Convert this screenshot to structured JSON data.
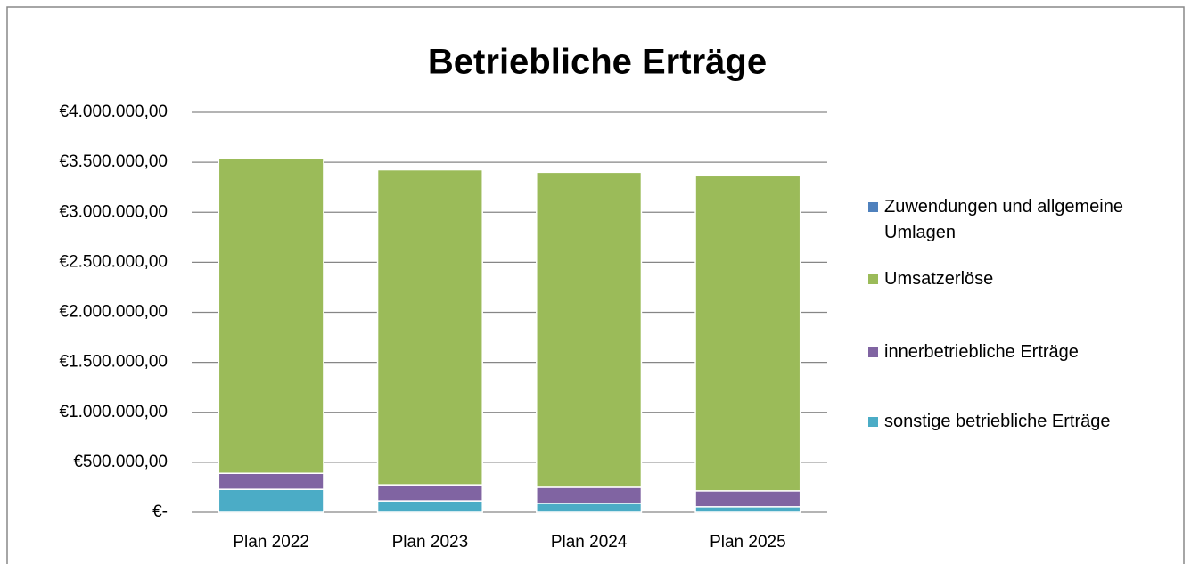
{
  "chart_data": {
    "type": "stacked_bar",
    "title": "Betriebliche Erträge",
    "categories": [
      "Plan 2022",
      "Plan 2023",
      "Plan 2024",
      "Plan 2025"
    ],
    "series": [
      {
        "name": "Zuwendungen und allgemeine Umlagen",
        "color": "#4f81bd",
        "values": [
          0,
          0,
          0,
          0
        ]
      },
      {
        "name": "Umsatzerlöse",
        "color": "#9bbb59",
        "values": [
          3150000,
          3150000,
          3150000,
          3150000
        ]
      },
      {
        "name": "innerbetriebliche Erträge",
        "color": "#8064a2",
        "values": [
          160000,
          160000,
          160000,
          160000
        ]
      },
      {
        "name": "sonstige betriebliche Erträge",
        "color": "#4bacc6",
        "values": [
          230000,
          115000,
          90000,
          55000
        ]
      }
    ],
    "ylim": [
      0,
      4000000
    ],
    "yticks": [
      {
        "value": 0,
        "label": "€-"
      },
      {
        "value": 500000,
        "label": "€500.000,00"
      },
      {
        "value": 1000000,
        "label": "€1.000.000,00"
      },
      {
        "value": 1500000,
        "label": "€1.500.000,00"
      },
      {
        "value": 2000000,
        "label": "€2.000.000,00"
      },
      {
        "value": 2500000,
        "label": "€2.500.000,00"
      },
      {
        "value": 3000000,
        "label": "€3.000.000,00"
      },
      {
        "value": 3500000,
        "label": "€3.500.000,00"
      },
      {
        "value": 4000000,
        "label": "€4.000.000,00"
      }
    ],
    "grid": true,
    "legend": "right"
  }
}
